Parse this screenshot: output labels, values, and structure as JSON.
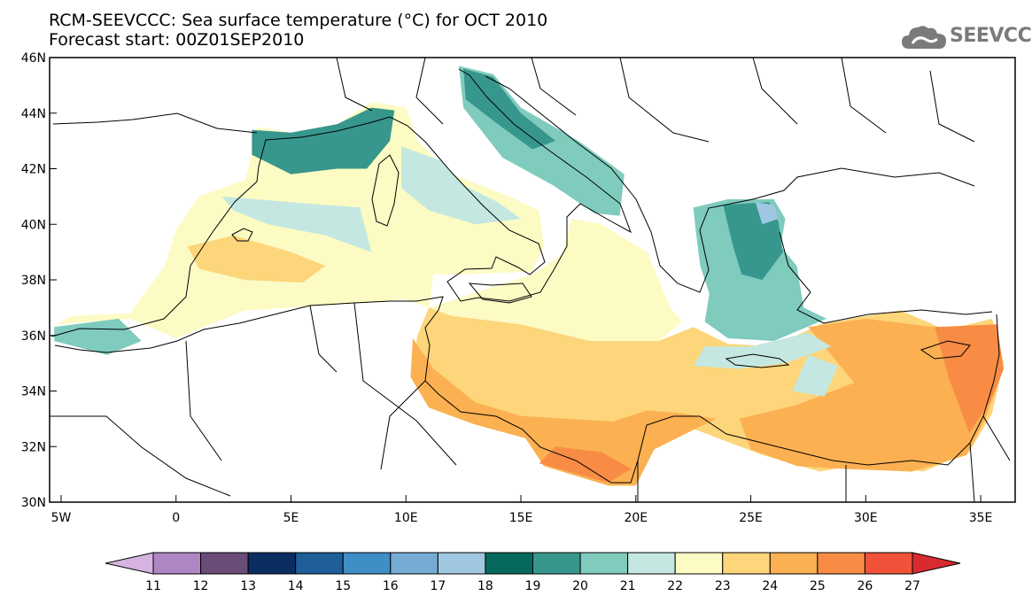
{
  "header": {
    "title": "RCM-SEEVCCC: Sea surface temperature (°C) for OCT 2010",
    "subtitle": "Forecast start: 00Z01SEP2010"
  },
  "logo": {
    "text": "SEEVCCC",
    "icon": "cloud-icon",
    "color": "#7a7a7a"
  },
  "map": {
    "lon_range": [
      -5.5,
      36.5
    ],
    "lat_range": [
      30,
      46
    ],
    "lon_ticks": [
      {
        "value": -5,
        "label": "5W"
      },
      {
        "value": 0,
        "label": "0"
      },
      {
        "value": 5,
        "label": "5E"
      },
      {
        "value": 10,
        "label": "10E"
      },
      {
        "value": 15,
        "label": "15E"
      },
      {
        "value": 20,
        "label": "20E"
      },
      {
        "value": 25,
        "label": "25E"
      },
      {
        "value": 30,
        "label": "30E"
      },
      {
        "value": 35,
        "label": "35E"
      }
    ],
    "lat_ticks": [
      {
        "value": 30,
        "label": "30N"
      },
      {
        "value": 32,
        "label": "32N"
      },
      {
        "value": 34,
        "label": "34N"
      },
      {
        "value": 36,
        "label": "36N"
      },
      {
        "value": 38,
        "label": "38N"
      },
      {
        "value": 40,
        "label": "40N"
      },
      {
        "value": 42,
        "label": "42N"
      },
      {
        "value": 44,
        "label": "44N"
      },
      {
        "value": 46,
        "label": "46N"
      }
    ],
    "regions": [
      {
        "name": "western-med-base",
        "level": 22,
        "points": [
          [
            -5.3,
            36.4
          ],
          [
            -2,
            36.6
          ],
          [
            0,
            35.9
          ],
          [
            3,
            36.9
          ],
          [
            7,
            37.1
          ],
          [
            10,
            37.3
          ],
          [
            11,
            37
          ],
          [
            11.2,
            38.2
          ],
          [
            12.5,
            38.2
          ],
          [
            15.5,
            38.3
          ],
          [
            16,
            39.2
          ],
          [
            15.8,
            40.5
          ],
          [
            14.5,
            41
          ],
          [
            12,
            41.8
          ],
          [
            10.5,
            43
          ],
          [
            10,
            44.2
          ],
          [
            8.5,
            44.4
          ],
          [
            7,
            43.6
          ],
          [
            5,
            43.3
          ],
          [
            3.5,
            43.5
          ],
          [
            3.2,
            42.2
          ],
          [
            3,
            41.6
          ],
          [
            1,
            41
          ],
          [
            0,
            39.8
          ],
          [
            -0.5,
            38.5
          ],
          [
            -2,
            36.8
          ],
          [
            -4.5,
            36.7
          ],
          [
            -5.3,
            36.4
          ]
        ]
      },
      {
        "name": "alboran-west",
        "level": 20,
        "points": [
          [
            -5.3,
            36.3
          ],
          [
            -2.5,
            36.6
          ],
          [
            -1.5,
            35.8
          ],
          [
            -3,
            35.3
          ],
          [
            -5.3,
            35.8
          ]
        ]
      },
      {
        "name": "gulf-of-lion",
        "level": 19,
        "points": [
          [
            3.3,
            43.4
          ],
          [
            5,
            43.3
          ],
          [
            7,
            43.6
          ],
          [
            8.5,
            44.2
          ],
          [
            9.5,
            44.1
          ],
          [
            9.3,
            43
          ],
          [
            8.3,
            42
          ],
          [
            7,
            42
          ],
          [
            5,
            41.8
          ],
          [
            3.3,
            42.5
          ]
        ]
      },
      {
        "name": "ligurian-dark",
        "level": 19,
        "points": [
          [
            4,
            43.2
          ],
          [
            6.5,
            42.8
          ],
          [
            8,
            42.4
          ],
          [
            8.8,
            43.2
          ],
          [
            7.5,
            43.3
          ],
          [
            5.5,
            43
          ]
        ]
      },
      {
        "name": "sardinia-sea-21",
        "level": 21,
        "points": [
          [
            2,
            41
          ],
          [
            5,
            40.8
          ],
          [
            8,
            40.6
          ],
          [
            8.5,
            39
          ],
          [
            6.5,
            39.6
          ],
          [
            4,
            40
          ],
          [
            2.5,
            40.5
          ]
        ]
      },
      {
        "name": "tyrrhenian-21",
        "level": 21,
        "points": [
          [
            9.8,
            42.8
          ],
          [
            11.5,
            42.3
          ],
          [
            12.5,
            41.4
          ],
          [
            14,
            40.8
          ],
          [
            15,
            40.2
          ],
          [
            13,
            40
          ],
          [
            11,
            40.5
          ],
          [
            9.8,
            41.3
          ]
        ]
      },
      {
        "name": "balearic-warm",
        "level": 23,
        "points": [
          [
            0.5,
            39.2
          ],
          [
            2.5,
            39.6
          ],
          [
            5,
            39
          ],
          [
            6.5,
            38.5
          ],
          [
            5.5,
            37.9
          ],
          [
            3,
            38
          ],
          [
            1,
            38.4
          ]
        ]
      },
      {
        "name": "adriatic",
        "level": 20,
        "points": [
          [
            12.3,
            45.7
          ],
          [
            13.8,
            45.4
          ],
          [
            15,
            44.2
          ],
          [
            17.5,
            43
          ],
          [
            19.5,
            41.8
          ],
          [
            19.3,
            40.3
          ],
          [
            18.2,
            40.4
          ],
          [
            16.4,
            41.4
          ],
          [
            14.2,
            42.4
          ],
          [
            12.5,
            44.2
          ]
        ]
      },
      {
        "name": "adriatic-north-dark",
        "level": 19,
        "points": [
          [
            12.5,
            45.6
          ],
          [
            13.8,
            45.3
          ],
          [
            15,
            44
          ],
          [
            16.5,
            43
          ],
          [
            15.5,
            42.7
          ],
          [
            14,
            43.6
          ],
          [
            12.6,
            44.5
          ]
        ]
      },
      {
        "name": "ionian-central",
        "level": 22,
        "points": [
          [
            15.5,
            38.2
          ],
          [
            16.8,
            38.9
          ],
          [
            17.2,
            40.2
          ],
          [
            18.5,
            40
          ],
          [
            20.5,
            39
          ],
          [
            21.5,
            37
          ],
          [
            22,
            36.5
          ],
          [
            21,
            35.8
          ],
          [
            18,
            35.8
          ],
          [
            15,
            36.4
          ],
          [
            12,
            36.7
          ],
          [
            11,
            37
          ]
        ]
      },
      {
        "name": "aegean",
        "level": 20,
        "points": [
          [
            22.5,
            40.6
          ],
          [
            24,
            40.9
          ],
          [
            26,
            40.9
          ],
          [
            26.5,
            40.2
          ],
          [
            26.3,
            39.2
          ],
          [
            27,
            38.5
          ],
          [
            27.3,
            37
          ],
          [
            28.3,
            36.6
          ],
          [
            26,
            35.8
          ],
          [
            24,
            35.9
          ],
          [
            23,
            36.5
          ],
          [
            23.2,
            37.5
          ],
          [
            22.8,
            38.5
          ],
          [
            22.6,
            39.8
          ]
        ]
      },
      {
        "name": "aegean-north-dark",
        "level": 19,
        "points": [
          [
            23.8,
            40.7
          ],
          [
            25.8,
            40.8
          ],
          [
            26.2,
            40.1
          ],
          [
            26.4,
            39
          ],
          [
            25.5,
            38
          ],
          [
            24.6,
            38.2
          ],
          [
            24.2,
            39.3
          ]
        ]
      },
      {
        "name": "aegean-cold-patch",
        "level": 17,
        "points": [
          [
            25.2,
            40.8
          ],
          [
            26,
            40.7
          ],
          [
            26.2,
            40.2
          ],
          [
            25.5,
            40
          ]
        ]
      },
      {
        "name": "eastern-med-base",
        "level": 23,
        "points": [
          [
            11,
            37
          ],
          [
            12,
            36.7
          ],
          [
            15,
            36.4
          ],
          [
            18,
            35.8
          ],
          [
            21,
            35.8
          ],
          [
            22.5,
            36.3
          ],
          [
            24,
            35.7
          ],
          [
            26,
            35.6
          ],
          [
            28,
            36.4
          ],
          [
            30,
            36.7
          ],
          [
            31.5,
            36.9
          ],
          [
            33.5,
            36.2
          ],
          [
            35.5,
            36.6
          ],
          [
            36,
            35
          ],
          [
            35.5,
            33.2
          ],
          [
            34.5,
            31.8
          ],
          [
            32.5,
            31.1
          ],
          [
            30,
            31.4
          ],
          [
            28,
            31.1
          ],
          [
            25.5,
            31.7
          ],
          [
            22,
            32.8
          ],
          [
            20.2,
            31.8
          ],
          [
            20,
            30.6
          ],
          [
            18.8,
            30.6
          ],
          [
            16,
            31.3
          ],
          [
            15.2,
            32.3
          ],
          [
            13,
            32.8
          ],
          [
            11,
            33.4
          ],
          [
            10.2,
            34.5
          ],
          [
            10.5,
            36
          ]
        ]
      },
      {
        "name": "levant-warm",
        "level": 24,
        "points": [
          [
            27.5,
            36.3
          ],
          [
            30,
            36.6
          ],
          [
            32,
            36.4
          ],
          [
            34,
            36.2
          ],
          [
            35.7,
            36.4
          ],
          [
            36,
            34.8
          ],
          [
            35.2,
            33
          ],
          [
            34.4,
            31.7
          ],
          [
            32,
            31.1
          ],
          [
            29,
            31.2
          ],
          [
            27,
            31.3
          ],
          [
            25,
            31.9
          ],
          [
            24.5,
            33
          ],
          [
            27,
            33.5
          ],
          [
            29.5,
            34.3
          ]
        ]
      },
      {
        "name": "levant-hot",
        "level": 25,
        "points": [
          [
            33,
            36.3
          ],
          [
            35.7,
            36.4
          ],
          [
            36,
            34.8
          ],
          [
            35.4,
            33.6
          ],
          [
            34.5,
            32.5
          ],
          [
            33.6,
            34.5
          ]
        ]
      },
      {
        "name": "libya-warm",
        "level": 24,
        "points": [
          [
            10.3,
            35.9
          ],
          [
            11.2,
            34.8
          ],
          [
            13,
            33.6
          ],
          [
            15,
            33.1
          ],
          [
            17,
            33
          ],
          [
            19,
            32.9
          ],
          [
            20.5,
            33.3
          ],
          [
            22,
            33.2
          ],
          [
            23.5,
            33
          ],
          [
            22.5,
            32.6
          ],
          [
            20.8,
            31.9
          ],
          [
            20,
            30.6
          ],
          [
            18.8,
            30.6
          ],
          [
            16,
            31.3
          ],
          [
            15.2,
            32.3
          ],
          [
            13,
            32.8
          ],
          [
            11,
            33.4
          ],
          [
            10.2,
            34.5
          ]
        ]
      },
      {
        "name": "sidra-hot",
        "level": 25,
        "points": [
          [
            15.8,
            31.4
          ],
          [
            18.8,
            30.7
          ],
          [
            19.8,
            31.2
          ],
          [
            18.5,
            31.8
          ],
          [
            16.5,
            32
          ]
        ]
      },
      {
        "name": "cretan-cool",
        "level": 21,
        "points": [
          [
            22.5,
            34.9
          ],
          [
            24.5,
            34.8
          ],
          [
            26.5,
            35
          ],
          [
            28.5,
            35.6
          ],
          [
            27.5,
            36.1
          ],
          [
            25,
            35.6
          ],
          [
            23,
            35.6
          ]
        ]
      },
      {
        "name": "cyprus-cool",
        "level": 21,
        "points": [
          [
            26.8,
            34
          ],
          [
            28.2,
            33.8
          ],
          [
            28.8,
            34.9
          ],
          [
            27.5,
            35.3
          ]
        ]
      }
    ],
    "colorbar": {
      "levels": [
        11,
        12,
        13,
        14,
        15,
        16,
        17,
        18,
        19,
        20,
        21,
        22,
        23,
        24,
        25,
        26,
        27
      ],
      "colors": [
        "#d6b3e0",
        "#ad86c3",
        "#6a4c78",
        "#0b2d62",
        "#1e5f99",
        "#3f8ec6",
        "#76abd4",
        "#9fc7e2",
        "#07695d",
        "#37978c",
        "#7fcbbe",
        "#c4e8e1",
        "#fdfbc4",
        "#fdd57a",
        "#fbb051",
        "#f88c45",
        "#f0533a",
        "#d92a31"
      ]
    }
  }
}
